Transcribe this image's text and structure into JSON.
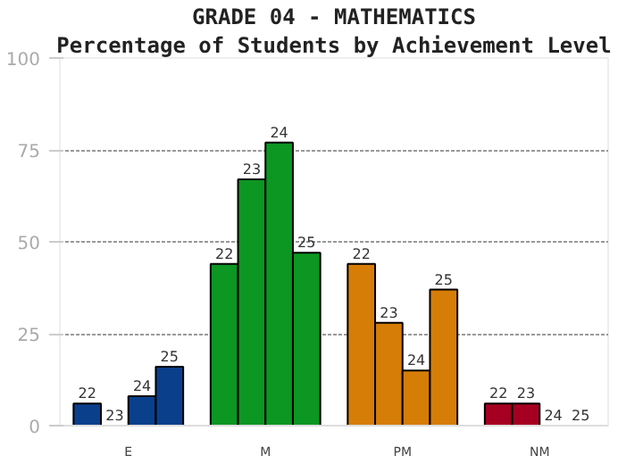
{
  "chart_data": {
    "type": "bar",
    "title": "GRADE 04 - MATHEMATICS",
    "subtitle": "Percentage of Students by Achievement Level",
    "categories": [
      "E",
      "M",
      "PM",
      "NM"
    ],
    "series": [
      {
        "name": "22",
        "values": [
          6,
          44,
          44,
          6
        ],
        "colors": [
          "#0a3f8c",
          "#0c9622",
          "#d67d07",
          "#a50021"
        ]
      },
      {
        "name": "23",
        "values": [
          0,
          67,
          28,
          6
        ],
        "colors": [
          "#0a3f8c",
          "#0c9622",
          "#d67d07",
          "#a50021"
        ]
      },
      {
        "name": "24",
        "values": [
          8,
          77,
          15,
          0
        ],
        "colors": [
          "#0a3f8c",
          "#0c9622",
          "#d67d07",
          "#a50021"
        ]
      },
      {
        "name": "25",
        "values": [
          16,
          47,
          37,
          0
        ],
        "colors": [
          "#0a3f8c",
          "#0c9622",
          "#d67d07",
          "#a50021"
        ]
      }
    ],
    "ylim": [
      0,
      100
    ],
    "yticks": [
      0,
      25,
      50,
      75,
      100
    ],
    "grid": "y"
  }
}
